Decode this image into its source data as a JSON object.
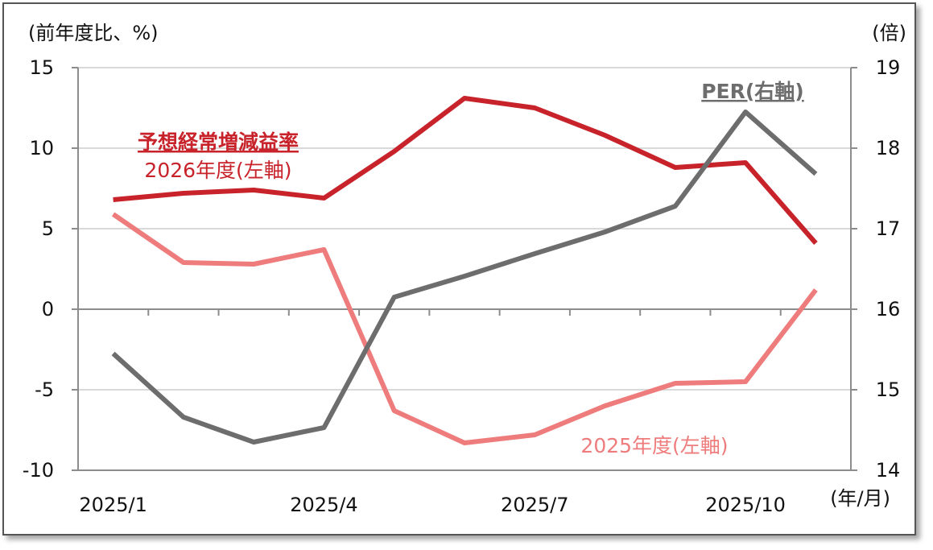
{
  "chart_data": {
    "type": "line",
    "y_left": {
      "label": "(前年度比、%)",
      "range": [
        -10,
        15
      ],
      "ticks": [
        "15",
        "10",
        "5",
        "0",
        "-5",
        "-10"
      ],
      "tick_values": [
        15,
        10,
        5,
        0,
        -5,
        -10
      ],
      "negative_color": "#e00000"
    },
    "y_right": {
      "label": "(倍)",
      "range": [
        14,
        19
      ],
      "ticks": [
        "19",
        "18",
        "17",
        "16",
        "15",
        "14"
      ],
      "tick_values": [
        19,
        18,
        17,
        16,
        15,
        14
      ]
    },
    "x": {
      "label": "(年/月)",
      "categories": [
        "2025/1",
        "2025/2",
        "2025/3",
        "2025/4",
        "2025/5",
        "2025/6",
        "2025/7",
        "2025/8",
        "2025/9",
        "2025/10",
        "2025/11"
      ],
      "tick_labels": [
        "2025/1",
        "2025/4",
        "2025/7",
        "2025/10"
      ]
    },
    "grid": true,
    "series": [
      {
        "key": "fy2026",
        "axis": "left",
        "color": "#c8232b",
        "values": [
          6.8,
          7.2,
          7.4,
          6.9,
          9.8,
          13.1,
          12.5,
          10.8,
          8.8,
          9.1,
          4.1
        ],
        "label_line1": "予想経常増減益率",
        "label_line2": "2026年度(左軸)"
      },
      {
        "key": "fy2025",
        "axis": "left",
        "color": "#ef7c7c",
        "values": [
          5.9,
          2.9,
          2.8,
          3.7,
          -6.3,
          -8.3,
          -7.8,
          -6.0,
          -4.6,
          -4.5,
          1.2
        ],
        "label": "2025年度(左軸)"
      },
      {
        "key": "per",
        "axis": "right",
        "color": "#6d6d6d",
        "values": [
          15.45,
          14.66,
          14.35,
          14.53,
          16.15,
          16.41,
          16.69,
          16.96,
          17.28,
          18.45,
          17.68
        ],
        "label": "PER(右軸)"
      }
    ]
  }
}
